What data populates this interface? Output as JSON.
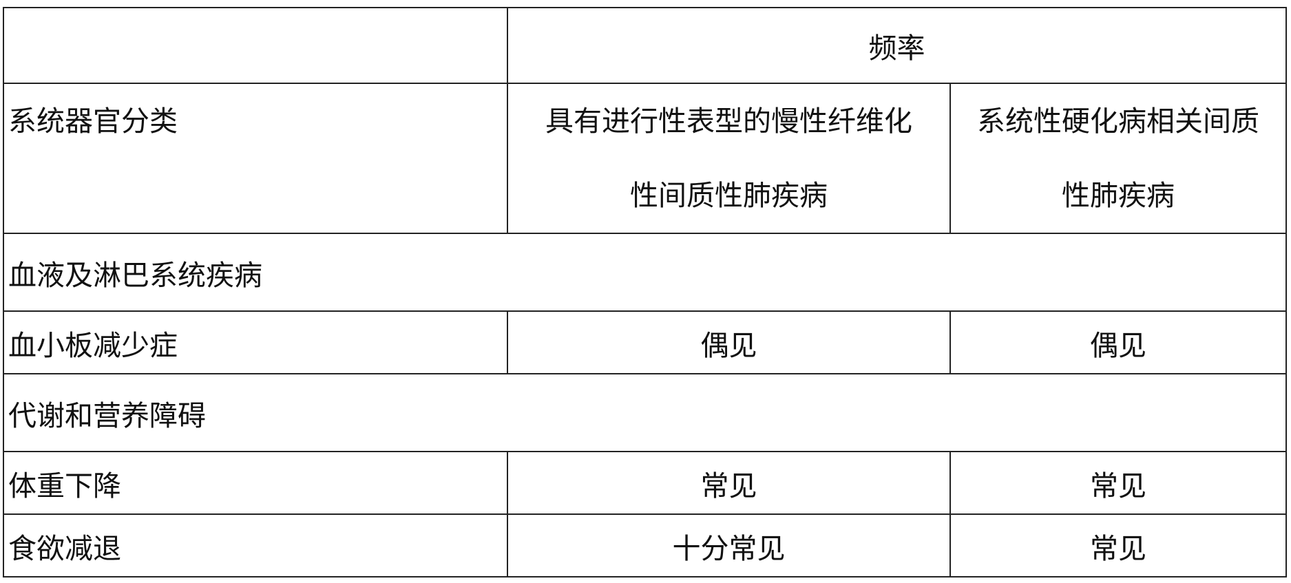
{
  "table": {
    "header": {
      "frequency": "频率",
      "soc": "系统器官分类",
      "col1": "具有进行性表型的慢性纤维化性间质性肺疾病",
      "col1_line1": "具有进行性表型的慢性纤维化",
      "col1_line2": "性间质性肺疾病",
      "col2_line1": "系统性硬化病相关间质",
      "col2_line2": "性肺疾病"
    },
    "rows": [
      {
        "type": "section",
        "label": "血液及淋巴系统疾病"
      },
      {
        "type": "data",
        "label": "血小板减少症",
        "v1": "偶见",
        "v2": "偶见"
      },
      {
        "type": "section",
        "label": "代谢和营养障碍"
      },
      {
        "type": "data",
        "label": "体重下降",
        "v1": "常见",
        "v2": "常见"
      },
      {
        "type": "data",
        "label": "食欲减退",
        "v1": "十分常见",
        "v2": "常见"
      }
    ]
  }
}
